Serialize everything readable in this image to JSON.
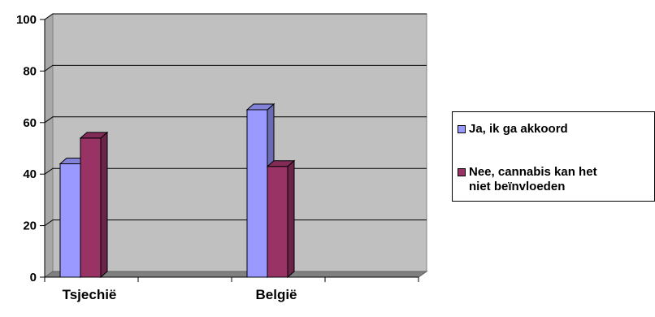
{
  "chart_data": {
    "type": "bar",
    "title": "",
    "xlabel": "",
    "ylabel": "",
    "categories": [
      "Tsjechië",
      "België"
    ],
    "series": [
      {
        "name": "Ja, ik ga akkoord",
        "values": [
          44,
          65
        ],
        "color": "#9999FF"
      },
      {
        "name": "Nee, cannabis kan het niet beïnvloeden",
        "values": [
          54,
          43
        ],
        "color": "#993366"
      }
    ],
    "ylim": [
      0,
      100
    ],
    "yticks": [
      "0",
      "20",
      "40",
      "60",
      "80",
      "100"
    ],
    "grid": true,
    "legend_position": "right",
    "style": "3d-clustered-column",
    "wall_color": "#C0C0C0"
  },
  "legend": {
    "items": [
      {
        "line1": "Ja, ik ga akkoord",
        "line2": ""
      },
      {
        "line1": "Nee, cannabis kan het",
        "line2": "niet beïnvloeden"
      }
    ]
  }
}
